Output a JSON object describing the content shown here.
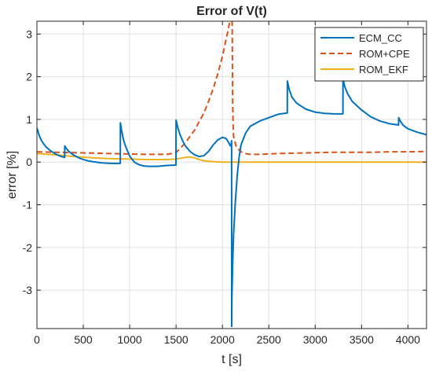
{
  "chart_data": {
    "type": "line",
    "title": "Error of V(t)",
    "xlabel": "t [s]",
    "ylabel": "error [%]",
    "xlim": [
      0,
      4200
    ],
    "ylim": [
      -3.9,
      3.3
    ],
    "xticks": [
      0,
      500,
      1000,
      1500,
      2000,
      2500,
      3000,
      3500,
      4000
    ],
    "yticks": [
      -3,
      -2,
      -1,
      0,
      1,
      2,
      3
    ],
    "grid": true,
    "legend_position": "top-right",
    "series": [
      {
        "name": "ECM_CC",
        "color": "#0072BD",
        "style": "solid",
        "x": [
          0,
          25,
          50,
          75,
          100,
          150,
          200,
          250,
          299,
          300,
          320,
          340,
          360,
          400,
          450,
          500,
          550,
          600,
          700,
          800,
          899,
          900,
          915,
          930,
          950,
          1000,
          1050,
          1100,
          1150,
          1200,
          1300,
          1400,
          1499,
          1500,
          1520,
          1540,
          1570,
          1600,
          1650,
          1700,
          1750,
          1800,
          1850,
          1900,
          1950,
          2000,
          2040,
          2070,
          2085,
          2095,
          2099,
          2100,
          2102,
          2110,
          2120,
          2140,
          2160,
          2180,
          2200,
          2250,
          2300,
          2400,
          2500,
          2600,
          2699,
          2700,
          2720,
          2750,
          2800,
          2900,
          3000,
          3100,
          3200,
          3299,
          3300,
          3320,
          3350,
          3400,
          3500,
          3600,
          3700,
          3800,
          3899,
          3900,
          3920,
          3950,
          4000,
          4100,
          4200
        ],
        "y": [
          0.8,
          0.62,
          0.5,
          0.42,
          0.35,
          0.26,
          0.19,
          0.14,
          0.11,
          0.38,
          0.31,
          0.26,
          0.22,
          0.16,
          0.1,
          0.06,
          0.03,
          0.01,
          -0.02,
          -0.03,
          -0.03,
          0.92,
          0.72,
          0.55,
          0.4,
          0.14,
          0.0,
          -0.06,
          -0.09,
          -0.1,
          -0.1,
          -0.08,
          -0.07,
          0.98,
          0.8,
          0.66,
          0.5,
          0.38,
          0.25,
          0.17,
          0.13,
          0.15,
          0.25,
          0.4,
          0.52,
          0.58,
          0.55,
          0.45,
          0.38,
          0.4,
          0.5,
          -3.85,
          -3.2,
          -2.4,
          -1.7,
          -0.9,
          -0.3,
          0.12,
          0.4,
          0.68,
          0.84,
          0.96,
          1.04,
          1.12,
          1.15,
          1.9,
          1.7,
          1.52,
          1.38,
          1.24,
          1.17,
          1.14,
          1.13,
          1.13,
          1.94,
          1.76,
          1.6,
          1.42,
          1.22,
          1.06,
          0.96,
          0.9,
          0.87,
          1.04,
          0.95,
          0.86,
          0.78,
          0.7,
          0.64
        ]
      },
      {
        "name": "ROM+CPE",
        "color": "#D95319",
        "style": "dashed",
        "x": [
          0,
          200,
          400,
          600,
          800,
          1000,
          1200,
          1400,
          1500,
          1600,
          1700,
          1800,
          1850,
          1900,
          1950,
          2000,
          2030,
          2060,
          2080,
          2090,
          2100,
          2105,
          2110,
          2115,
          2120,
          2150,
          2200,
          2250,
          2300,
          2400,
          2500,
          2600,
          2800,
          3000,
          3200,
          3300,
          3400,
          3600,
          3800,
          4000,
          4200
        ],
        "y": [
          0.24,
          0.23,
          0.22,
          0.21,
          0.2,
          0.19,
          0.18,
          0.18,
          0.22,
          0.45,
          0.75,
          1.15,
          1.42,
          1.72,
          2.07,
          2.48,
          2.78,
          3.08,
          3.3,
          3.3,
          3.3,
          3.3,
          1.4,
          0.9,
          0.6,
          0.35,
          0.24,
          0.2,
          0.18,
          0.18,
          0.19,
          0.2,
          0.21,
          0.22,
          0.23,
          0.23,
          0.23,
          0.23,
          0.24,
          0.24,
          0.25
        ]
      },
      {
        "name": "ROM_EKF",
        "color": "#EDB120",
        "style": "solid",
        "x": [
          0,
          200,
          400,
          600,
          800,
          1000,
          1200,
          1400,
          1500,
          1550,
          1600,
          1650,
          1700,
          1750,
          1800,
          1900,
          2000,
          2100,
          2200,
          2400,
          2600,
          2800,
          3000,
          3200,
          3400,
          3600,
          3800,
          4000,
          4200
        ],
        "y": [
          0.2,
          0.17,
          0.13,
          0.1,
          0.08,
          0.07,
          0.06,
          0.06,
          0.07,
          0.09,
          0.11,
          0.12,
          0.1,
          0.06,
          0.03,
          0.01,
          0.0,
          0.0,
          0.0,
          0.0,
          0.0,
          0.0,
          0.0,
          0.0,
          0.0,
          0.0,
          0.0,
          0.0,
          0.0
        ]
      }
    ]
  }
}
